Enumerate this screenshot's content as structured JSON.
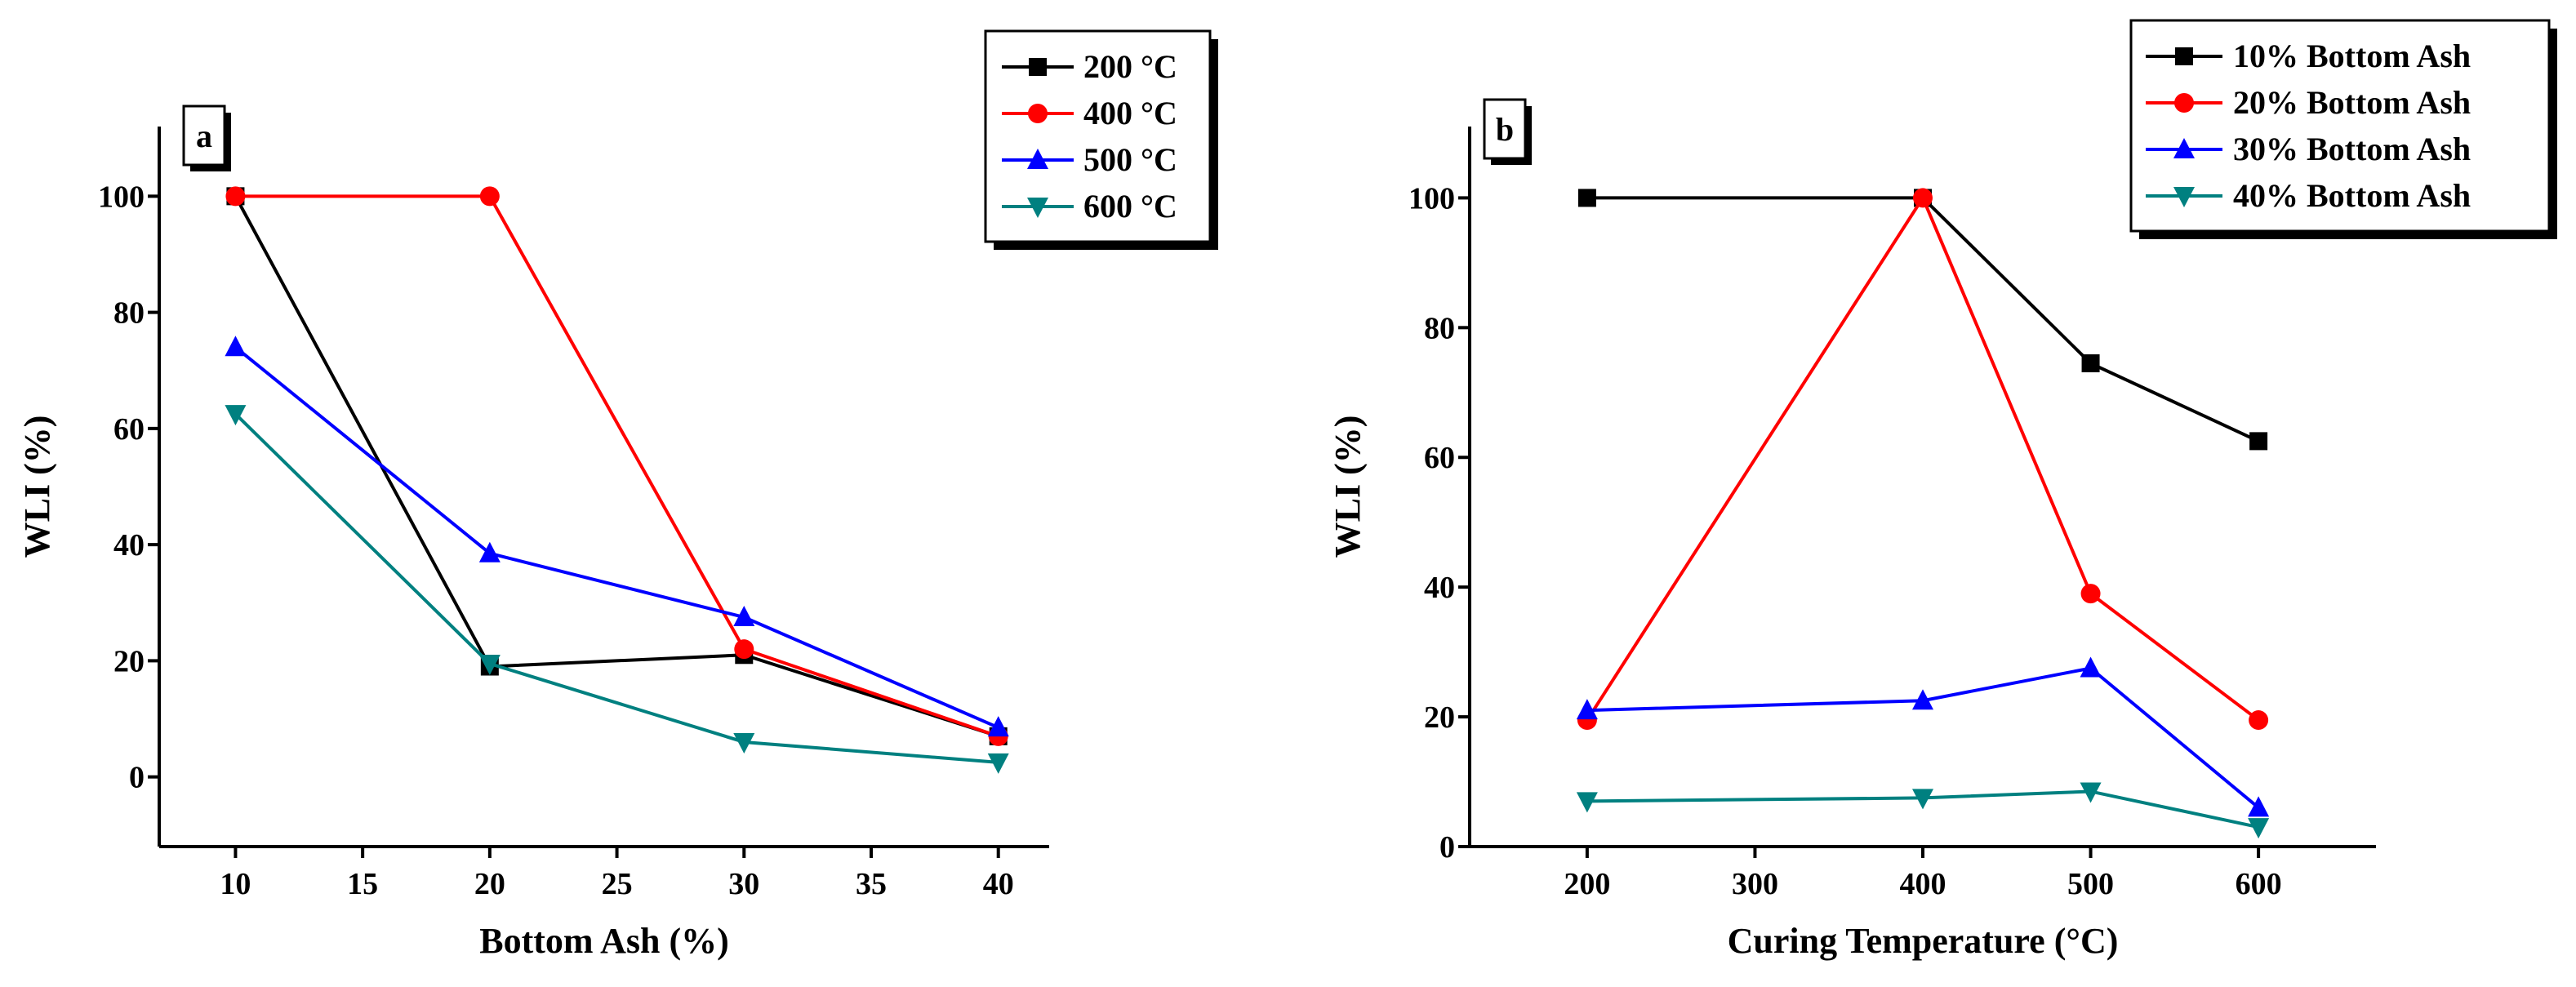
{
  "chart_data": [
    {
      "type": "line",
      "panel": "a",
      "xlabel": "Bottom Ash (%)",
      "ylabel": "WLI (%)",
      "xlim": [
        7,
        42
      ],
      "ylim": [
        -12,
        112
      ],
      "xticks": [
        10,
        15,
        20,
        25,
        30,
        35,
        40
      ],
      "yticks": [
        0,
        20,
        40,
        60,
        80,
        100
      ],
      "legend_position": "top-right",
      "x": [
        10,
        20,
        30,
        40
      ],
      "series": [
        {
          "name": "200 °C",
          "color": "#000000",
          "marker": "square",
          "values": [
            100,
            19,
            21,
            7
          ]
        },
        {
          "name": "400 °C",
          "color": "#ff0000",
          "marker": "circle",
          "values": [
            100,
            100,
            22,
            7
          ]
        },
        {
          "name": "500 °C",
          "color": "#0000ff",
          "marker": "triangle-up",
          "values": [
            74,
            38.5,
            27.5,
            8.5
          ]
        },
        {
          "name": "600 °C",
          "color": "#008080",
          "marker": "triangle-down",
          "values": [
            62.5,
            19.5,
            6,
            2.5
          ]
        }
      ]
    },
    {
      "type": "line",
      "panel": "b",
      "xlabel": "Curing Temperature (°C)",
      "ylabel": "WLI (%)",
      "xlim": [
        130,
        670
      ],
      "ylim": [
        0,
        111
      ],
      "xticks": [
        200,
        300,
        400,
        500,
        600
      ],
      "yticks": [
        0,
        20,
        40,
        60,
        80,
        100
      ],
      "legend_position": "top-right",
      "x": [
        200,
        400,
        500,
        600
      ],
      "series": [
        {
          "name": "10% Bottom Ash",
          "color": "#000000",
          "marker": "square",
          "values": [
            100,
            100,
            74.5,
            62.5
          ]
        },
        {
          "name": "20% Bottom Ash",
          "color": "#ff0000",
          "marker": "circle",
          "values": [
            19.5,
            100,
            39,
            19.5
          ]
        },
        {
          "name": "30% Bottom Ash",
          "color": "#0000ff",
          "marker": "triangle-up",
          "values": [
            21,
            22.5,
            27.5,
            6
          ]
        },
        {
          "name": "40% Bottom Ash",
          "color": "#008080",
          "marker": "triangle-down",
          "values": [
            7,
            7.5,
            8.5,
            3
          ]
        }
      ]
    }
  ]
}
